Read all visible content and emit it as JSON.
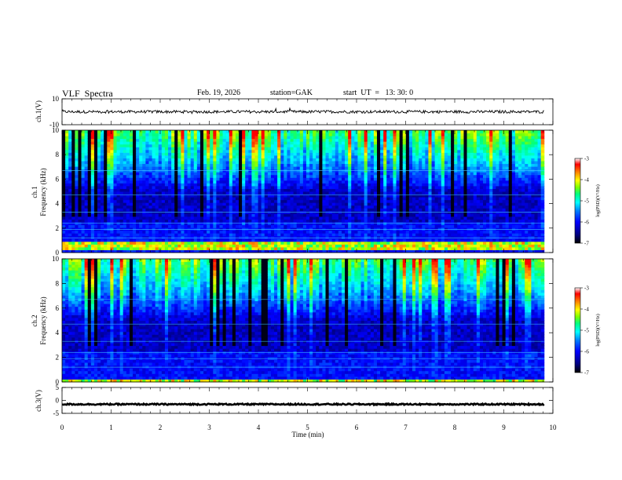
{
  "header": {
    "title": "VLF  Spectra",
    "date": "Feb. 19, 2026",
    "station": "station=GAK",
    "start": "start  UT  =   13: 30: 0"
  },
  "colors": {
    "trace": "#000000",
    "colormap": [
      "#000000",
      "#00007f",
      "#0000ff",
      "#007fff",
      "#00ffff",
      "#00ff7f",
      "#7fff00",
      "#ffff00",
      "#ff7f00",
      "#ff0000",
      "#ffffff"
    ]
  },
  "chart_data": [
    {
      "type": "line",
      "name": "ch1-waveform",
      "ylabel": "ch.1(V)",
      "ylim": [
        -10,
        10
      ],
      "y_ticks": [
        "10",
        "-10"
      ],
      "xlim": [
        0,
        10
      ],
      "baseline": 0,
      "note": "continuous waveform near 0 V with small fluctuations"
    },
    {
      "type": "heatmap",
      "name": "ch1-spectrogram",
      "ylabel_channel": "ch.1",
      "ylabel": "Frequency (kHz)",
      "ylim": [
        0,
        10
      ],
      "y_ticks": [
        "0",
        "2",
        "4",
        "6",
        "8",
        "10"
      ],
      "xlim": [
        0,
        10
      ],
      "colorbar": {
        "label": "log(PSD)(V²/Hz)",
        "range": [
          -7,
          -3
        ],
        "ticks": [
          "-3",
          "-4",
          "-5",
          "-6",
          "-7"
        ]
      },
      "hot_band_khz": [
        0.3,
        1.0
      ]
    },
    {
      "type": "heatmap",
      "name": "ch2-spectrogram",
      "ylabel_channel": "ch.2",
      "ylabel": "Frequency (kHz)",
      "ylim": [
        0,
        10
      ],
      "y_ticks": [
        "0",
        "2",
        "4",
        "6",
        "8",
        "10"
      ],
      "xlim": [
        0,
        10
      ],
      "colorbar": {
        "label": "log(PSD)(V²/Hz)",
        "range": [
          -7,
          -3
        ],
        "ticks": [
          "-3",
          "-4",
          "-5",
          "-6",
          "-7"
        ]
      },
      "hot_band_khz": [
        0.0,
        0.3
      ]
    },
    {
      "type": "line",
      "name": "ch3-waveform",
      "ylabel": "ch.3(V)",
      "ylim": [
        -5,
        5
      ],
      "y_ticks": [
        "5",
        "0",
        "-5"
      ],
      "xlim": [
        0,
        10
      ],
      "baseline": -1.5,
      "note": "flat dense trace at about -1.5 V"
    }
  ],
  "x_axis": {
    "label": "Time (min)",
    "ticks": [
      "0",
      "1",
      "2",
      "3",
      "4",
      "5",
      "6",
      "7",
      "8",
      "9",
      "10"
    ],
    "data_end": 9.82
  }
}
